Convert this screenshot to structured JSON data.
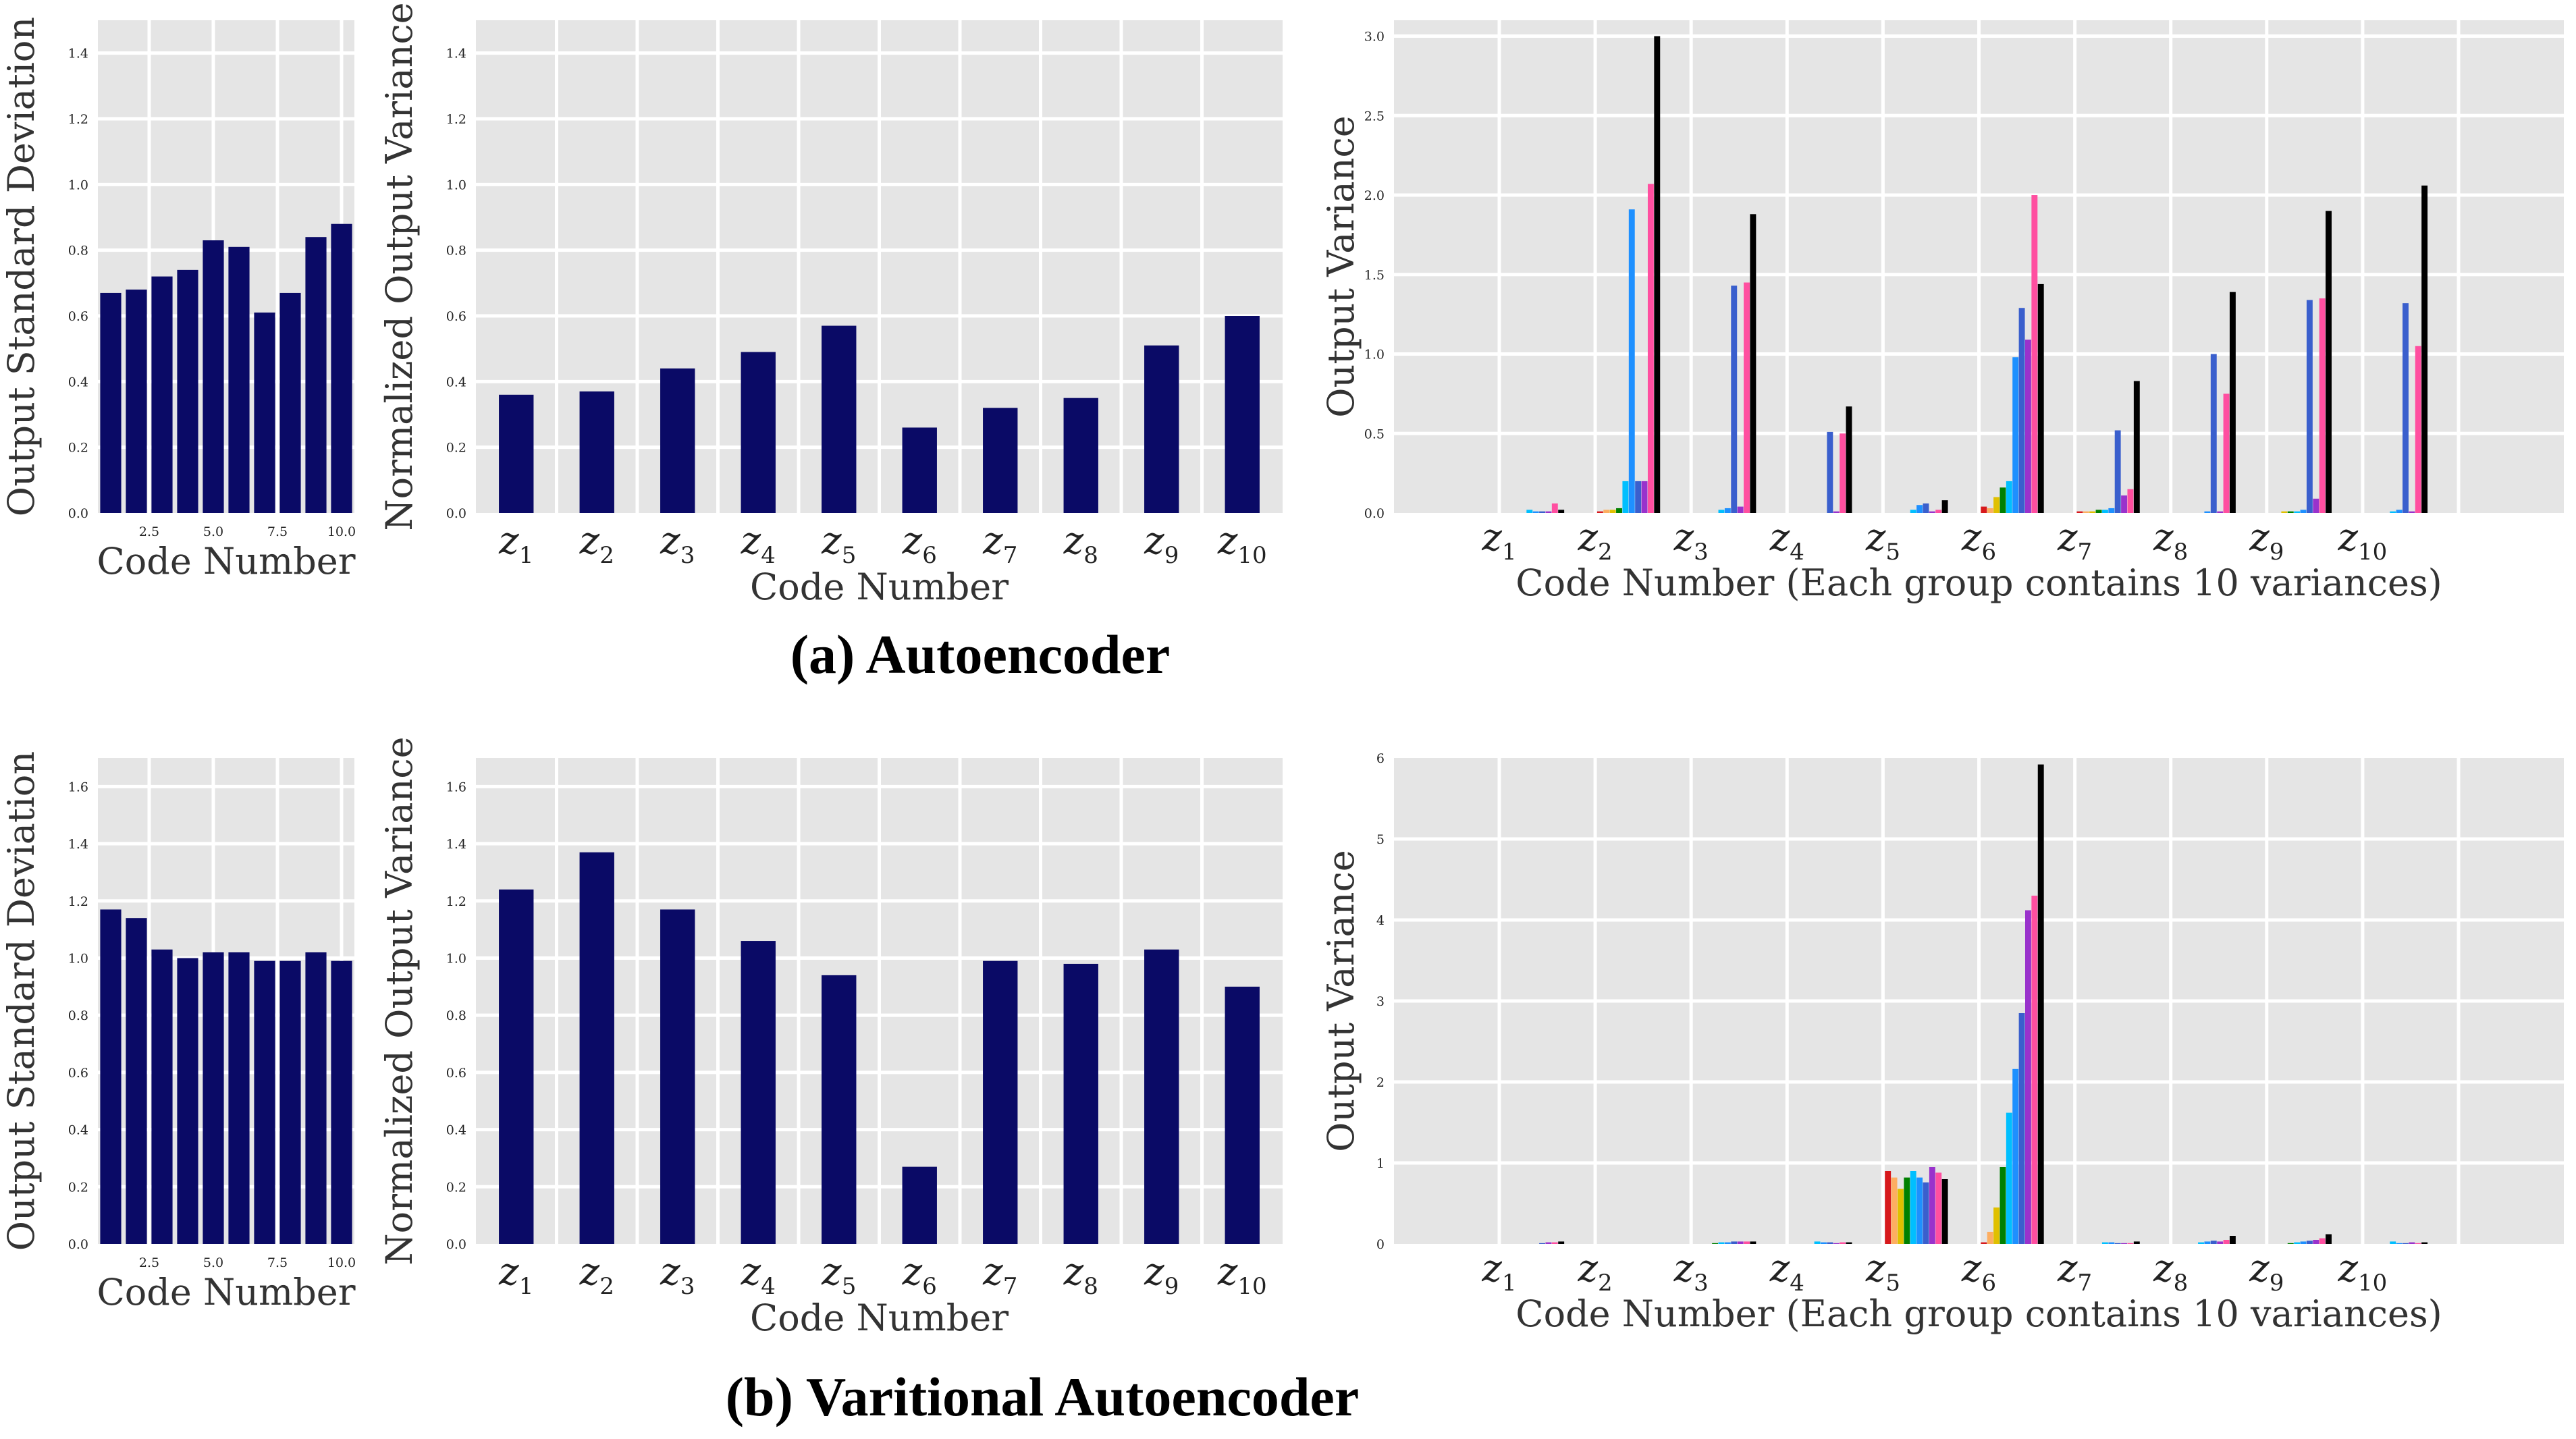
{
  "captions": {
    "a": "(a) Autoencoder",
    "b": "(b) Varitional Autoencoder"
  },
  "colors": {
    "panel_bg": "#e5e5e5",
    "grid": "#ffffff",
    "bar_main": "#0a0a66",
    "groups": [
      "#d7191c",
      "#fdae61",
      "#e0c000",
      "#008000",
      "#00bfff",
      "#1e90ff",
      "#3a5fcd",
      "#9932cc",
      "#ff4fa0",
      "#000000"
    ]
  },
  "chart_data": [
    {
      "id": "a1",
      "type": "bar",
      "xlabel": "Code Number",
      "ylabel": "Output Standard Deviation",
      "xticks": [
        "2.5",
        "5.0",
        "7.5",
        "10.0"
      ],
      "yticks": [
        "0.0",
        "0.2",
        "0.4",
        "0.6",
        "0.8",
        "1.0",
        "1.2",
        "1.4"
      ],
      "ylim": [
        0,
        1.5
      ],
      "xlim": [
        0.5,
        10.5
      ],
      "grid": true,
      "x": [
        1,
        2,
        3,
        4,
        5,
        6,
        7,
        8,
        9,
        10
      ],
      "values": [
        0.67,
        0.68,
        0.72,
        0.74,
        0.83,
        0.81,
        0.61,
        0.67,
        0.84,
        0.88
      ]
    },
    {
      "id": "a2",
      "type": "bar",
      "xlabel": "Code Number",
      "ylabel": "Normalized Output Variance",
      "yticks": [
        "0.0",
        "0.2",
        "0.4",
        "0.6",
        "0.8",
        "1.0",
        "1.2",
        "1.4"
      ],
      "ylim": [
        0,
        1.5
      ],
      "grid": true,
      "categories": [
        "z1",
        "z2",
        "z3",
        "z4",
        "z5",
        "z6",
        "z7",
        "z8",
        "z9",
        "z10"
      ],
      "values": [
        0.36,
        0.37,
        0.44,
        0.49,
        0.57,
        0.26,
        0.32,
        0.35,
        0.51,
        0.6
      ]
    },
    {
      "id": "a3",
      "type": "bar",
      "xlabel": "Code Number (Each group contains 10 variances)",
      "ylabel": "Output Variance",
      "yticks": [
        "0.0",
        "0.5",
        "1.0",
        "1.5",
        "2.0",
        "2.5",
        "3.0"
      ],
      "ylim": [
        0,
        3.1
      ],
      "grid": true,
      "categories": [
        "z1",
        "z2",
        "z3",
        "z4",
        "z5",
        "z6",
        "z7",
        "z8",
        "z9",
        "z10"
      ],
      "groups": [
        [
          0,
          0,
          0,
          0,
          0.02,
          0.01,
          0.01,
          0.01,
          0.06,
          0.02
        ],
        [
          0.01,
          0.02,
          0.02,
          0.03,
          0.2,
          1.91,
          0.2,
          0.2,
          2.07,
          3.0
        ],
        [
          0,
          0,
          0,
          0,
          0.02,
          0.03,
          1.43,
          0.04,
          1.45,
          1.88
        ],
        [
          0,
          0,
          0,
          0,
          0,
          0,
          0.51,
          0.01,
          0.5,
          0.67
        ],
        [
          0,
          0,
          0,
          0,
          0.02,
          0.05,
          0.06,
          0.01,
          0.02,
          0.08
        ],
        [
          0.04,
          0.03,
          0.1,
          0.16,
          0.2,
          0.98,
          1.29,
          1.09,
          2.0,
          1.44
        ],
        [
          0.01,
          0.01,
          0.01,
          0.02,
          0.02,
          0.03,
          0.52,
          0.11,
          0.15,
          0.83
        ],
        [
          0,
          0,
          0,
          0,
          0,
          0.01,
          1.0,
          0.01,
          0.75,
          1.39
        ],
        [
          0,
          0,
          0.01,
          0.01,
          0.01,
          0.02,
          1.34,
          0.09,
          1.35,
          1.9
        ],
        [
          0,
          0,
          0,
          0,
          0.01,
          0.02,
          1.32,
          0.01,
          1.05,
          2.06
        ]
      ]
    },
    {
      "id": "b1",
      "type": "bar",
      "xlabel": "Code Number",
      "ylabel": "Output Standard Deviation",
      "xticks": [
        "2.5",
        "5.0",
        "7.5",
        "10.0"
      ],
      "yticks": [
        "0.0",
        "0.2",
        "0.4",
        "0.6",
        "0.8",
        "1.0",
        "1.2",
        "1.4",
        "1.6"
      ],
      "ylim": [
        0,
        1.7
      ],
      "xlim": [
        0.5,
        10.5
      ],
      "grid": true,
      "x": [
        1,
        2,
        3,
        4,
        5,
        6,
        7,
        8,
        9,
        10
      ],
      "values": [
        1.17,
        1.14,
        1.03,
        1.0,
        1.02,
        1.02,
        0.99,
        0.99,
        1.02,
        0.99
      ]
    },
    {
      "id": "b2",
      "type": "bar",
      "xlabel": "Code Number",
      "ylabel": "Normalized Output Variance",
      "yticks": [
        "0.0",
        "0.2",
        "0.4",
        "0.6",
        "0.8",
        "1.0",
        "1.2",
        "1.4",
        "1.6"
      ],
      "ylim": [
        0,
        1.7
      ],
      "grid": true,
      "categories": [
        "z1",
        "z2",
        "z3",
        "z4",
        "z5",
        "z6",
        "z7",
        "z8",
        "z9",
        "z10"
      ],
      "values": [
        1.24,
        1.37,
        1.17,
        1.06,
        0.94,
        0.27,
        0.99,
        0.98,
        1.03,
        0.9
      ]
    },
    {
      "id": "b3",
      "type": "bar",
      "xlabel": "Code Number (Each group contains 10 variances)",
      "ylabel": "Output Variance",
      "yticks": [
        "0",
        "1",
        "2",
        "3",
        "4",
        "5",
        "6"
      ],
      "ylim": [
        0,
        6.0
      ],
      "grid": true,
      "categories": [
        "z1",
        "z2",
        "z3",
        "z4",
        "z5",
        "z6",
        "z7",
        "z8",
        "z9",
        "z10"
      ],
      "groups": [
        [
          0,
          0,
          0,
          0,
          0,
          0,
          0.01,
          0.02,
          0.02,
          0.03
        ],
        [
          0,
          0,
          0,
          0,
          0,
          0,
          0,
          0,
          0,
          0
        ],
        [
          0,
          0,
          0,
          0.01,
          0.02,
          0.02,
          0.03,
          0.03,
          0.03,
          0.03
        ],
        [
          0,
          0,
          0,
          0,
          0.03,
          0.02,
          0.02,
          0.01,
          0.02,
          0.02
        ],
        [
          0.9,
          0.82,
          0.68,
          0.82,
          0.9,
          0.82,
          0.76,
          0.95,
          0.88,
          0.8
        ],
        [
          0.02,
          0.15,
          0.45,
          0.95,
          1.62,
          2.16,
          2.85,
          4.12,
          4.3,
          5.92
        ],
        [
          0,
          0,
          0,
          0,
          0.02,
          0.02,
          0.01,
          0.01,
          0.01,
          0.03
        ],
        [
          0,
          0,
          0,
          0,
          0.02,
          0.03,
          0.04,
          0.03,
          0.05,
          0.1
        ],
        [
          0,
          0,
          0,
          0.01,
          0.02,
          0.03,
          0.04,
          0.05,
          0.07,
          0.12
        ],
        [
          0,
          0,
          0,
          0,
          0.03,
          0.01,
          0.01,
          0.02,
          0.01,
          0.02
        ]
      ]
    }
  ]
}
